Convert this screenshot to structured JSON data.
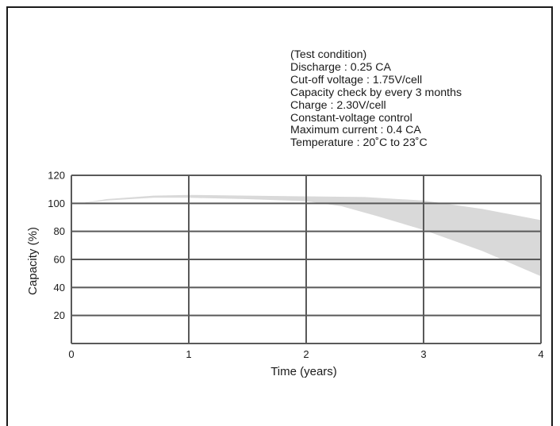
{
  "conditions": [
    "(Test condition)",
    "Discharge : 0.25 CA",
    "Cut-off voltage :  1.75V/cell",
    "Capacity check by every 3 months",
    "Charge : 2.30V/cell",
    "Constant-voltage control",
    "Maximum current : 0.4 CA",
    "Temperature : 20˚C to 23˚C"
  ],
  "colors": {
    "grid": "#595959",
    "band": "#d9d9d9",
    "text": "#1a1a1a"
  },
  "chart_data": {
    "type": "area",
    "xlabel": "Time (years)",
    "ylabel": "Capacity (%)",
    "xlim": [
      0,
      4
    ],
    "ylim": [
      0,
      120
    ],
    "x_ticks": [
      0,
      1,
      2,
      3,
      4
    ],
    "y_ticks": [
      20,
      40,
      60,
      80,
      100,
      120
    ],
    "grid": true,
    "series": [
      {
        "upper": [
          [
            0.08,
            100
          ],
          [
            0.3,
            103
          ],
          [
            0.7,
            105.5
          ],
          [
            1.0,
            106
          ],
          [
            1.5,
            105.5
          ],
          [
            2.0,
            105
          ],
          [
            2.5,
            104.5
          ],
          [
            3.0,
            102
          ],
          [
            3.5,
            96
          ],
          [
            4.0,
            88
          ]
        ],
        "lower": [
          [
            0.08,
            100
          ],
          [
            0.3,
            102
          ],
          [
            0.7,
            104
          ],
          [
            1.0,
            104
          ],
          [
            1.5,
            103
          ],
          [
            2.0,
            101.5
          ],
          [
            2.3,
            98
          ],
          [
            2.6,
            91
          ],
          [
            3.0,
            81
          ],
          [
            3.5,
            66
          ],
          [
            4.0,
            48
          ]
        ]
      }
    ]
  }
}
